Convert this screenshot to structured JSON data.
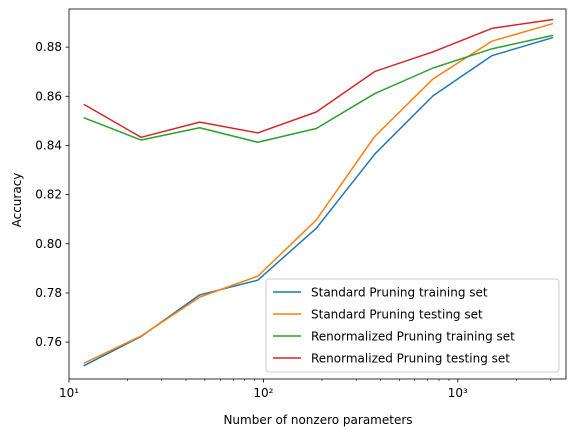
{
  "chart_data": {
    "type": "line",
    "xscale": "log",
    "xlabel": "Number of nonzero parameters",
    "ylabel": "Accuracy",
    "xlim": [
      10,
      3600
    ],
    "ylim": [
      0.745,
      0.8955
    ],
    "x_ticks": [
      {
        "value": 10,
        "label": "10¹"
      },
      {
        "value": 100,
        "label": "10²"
      },
      {
        "value": 1000,
        "label": "10³"
      }
    ],
    "y_ticks": [
      0.76,
      0.78,
      0.8,
      0.82,
      0.84,
      0.86,
      0.88
    ],
    "grid": false,
    "legend": "bottom-right",
    "x": [
      12,
      23.5,
      47,
      93.5,
      187,
      374,
      746,
      1495,
      3060
    ],
    "series": [
      {
        "name": "Standard Pruning training set",
        "color": "#1f77b4",
        "values": [
          0.7505,
          0.7623,
          0.7792,
          0.7852,
          0.8063,
          0.8365,
          0.8602,
          0.8765,
          0.8838
        ]
      },
      {
        "name": "Standard Pruning testing set",
        "color": "#ff7f0e",
        "values": [
          0.7515,
          0.7625,
          0.7783,
          0.7868,
          0.8097,
          0.8437,
          0.8671,
          0.8824,
          0.8895
        ]
      },
      {
        "name": "Renormalized Pruning training set",
        "color": "#2ca02c",
        "values": [
          0.8512,
          0.8422,
          0.8472,
          0.8413,
          0.8469,
          0.8611,
          0.8715,
          0.8793,
          0.8847
        ]
      },
      {
        "name": "Renormalized Pruning testing set",
        "color": "#d62728",
        "values": [
          0.8566,
          0.8433,
          0.8495,
          0.8451,
          0.8536,
          0.8701,
          0.8781,
          0.8876,
          0.8912
        ]
      }
    ]
  }
}
